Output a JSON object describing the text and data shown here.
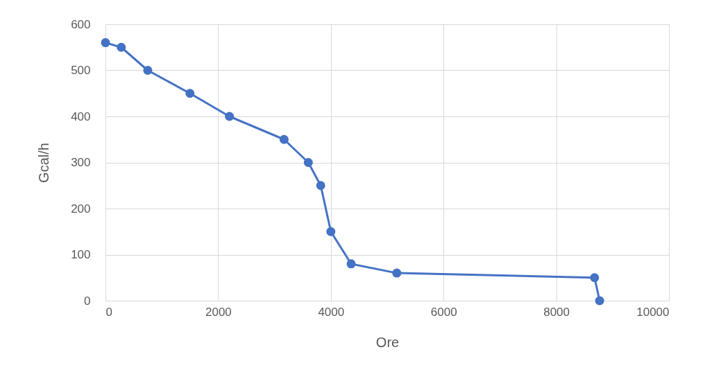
{
  "chart_data": {
    "type": "line",
    "xlabel": "Ore",
    "ylabel": "Gcal/h",
    "x": [
      0,
      280,
      750,
      1500,
      2200,
      3170,
      3600,
      3820,
      4000,
      4360,
      5170,
      8680,
      8770
    ],
    "series": [
      {
        "color": "#4472c4",
        "values": [
          560,
          550,
          500,
          450,
          400,
          350,
          300,
          250,
          150,
          80,
          60,
          50,
          0
        ]
      }
    ],
    "xlim": [
      0,
      10000
    ],
    "xticks": [
      0,
      2000,
      4000,
      6000,
      8000,
      10000
    ],
    "ylim": [
      0,
      600
    ],
    "yticks": [
      0,
      100,
      200,
      300,
      400,
      500,
      600
    ],
    "grid": true,
    "marker": "circle",
    "line_style": "solid"
  }
}
